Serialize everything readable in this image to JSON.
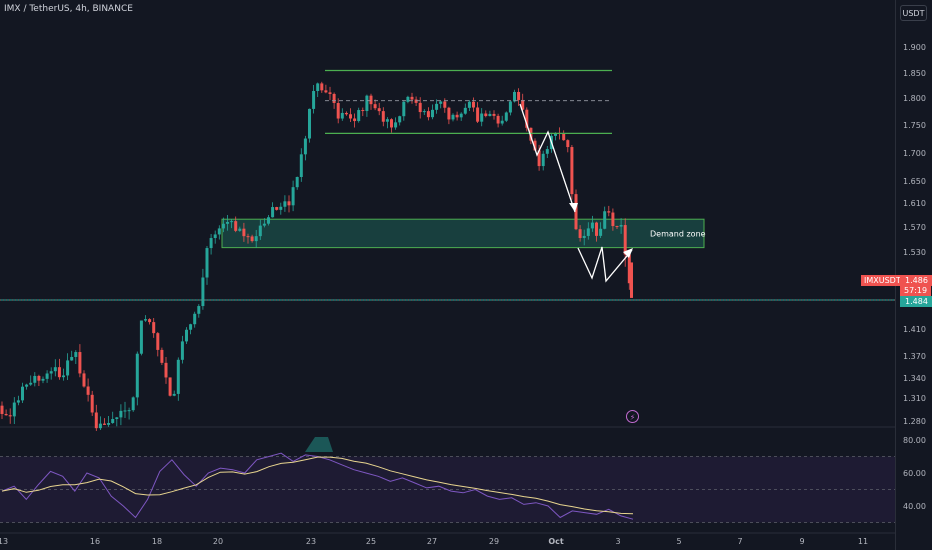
{
  "header": {
    "symbol_text": "IMX / TetherUS, 4h, BINANCE",
    "currency_button": "USDT"
  },
  "colors": {
    "background": "#131722",
    "up_candle": "#26a69a",
    "down_candle": "#ef5350",
    "range_line": "#4caf50",
    "demand_zone_fill": "#1b4d48",
    "rsi_line": "#7e57c2",
    "rsi_ma_line": "#e8d58f",
    "rsi_band_fill": "#1e1b33",
    "axis_text": "#b2b5be"
  },
  "price_axis": {
    "labels": [
      "1.900",
      "1.850",
      "1.800",
      "1.750",
      "1.700",
      "1.650",
      "1.610",
      "1.570",
      "1.530",
      "1.410",
      "1.370",
      "1.340",
      "1.310",
      "1.280"
    ]
  },
  "rsi_axis": {
    "labels": [
      "80.00",
      "60.00",
      "40.00"
    ],
    "levels": [
      70,
      50,
      30
    ]
  },
  "time_axis": {
    "labels": [
      "13",
      "16",
      "18",
      "20",
      "23",
      "25",
      "27",
      "29",
      "Oct",
      "3",
      "5",
      "7",
      "9",
      "11"
    ]
  },
  "price_tags": {
    "symbol_tag": "IMXUSDT",
    "last_price": "1.486",
    "countdown": "57:19",
    "bid_price": "1.484"
  },
  "annotations": {
    "demand_zone_label": "Demand zone"
  },
  "chart_data": {
    "type": "candlestick",
    "symbol": "IMX / TetherUS",
    "timeframe": "4h",
    "exchange": "BINANCE",
    "price_range": [
      1.26,
      1.93
    ],
    "dates": [
      "13",
      "16",
      "18",
      "20",
      "23",
      "25",
      "27",
      "29",
      "Oct",
      "3"
    ],
    "candles_approx": [
      {
        "date": "13",
        "open": 1.305,
        "high": 1.33,
        "low": 1.28,
        "close": 1.32
      },
      {
        "date": "15",
        "open": 1.33,
        "high": 1.36,
        "low": 1.3,
        "close": 1.345
      },
      {
        "date": "16",
        "open": 1.34,
        "high": 1.345,
        "low": 1.27,
        "close": 1.285
      },
      {
        "date": "17",
        "open": 1.29,
        "high": 1.46,
        "low": 1.27,
        "close": 1.44
      },
      {
        "date": "18",
        "open": 1.42,
        "high": 1.44,
        "low": 1.3,
        "close": 1.32
      },
      {
        "date": "19",
        "open": 1.33,
        "high": 1.47,
        "low": 1.32,
        "close": 1.46
      },
      {
        "date": "20",
        "open": 1.47,
        "high": 1.58,
        "low": 1.46,
        "close": 1.57
      },
      {
        "date": "21",
        "open": 1.56,
        "high": 1.6,
        "low": 1.52,
        "close": 1.58
      },
      {
        "date": "22",
        "open": 1.59,
        "high": 1.72,
        "low": 1.57,
        "close": 1.7
      },
      {
        "date": "23",
        "open": 1.72,
        "high": 1.86,
        "low": 1.7,
        "close": 1.82
      },
      {
        "date": "24",
        "open": 1.8,
        "high": 1.82,
        "low": 1.74,
        "close": 1.76
      },
      {
        "date": "25",
        "open": 1.76,
        "high": 1.81,
        "low": 1.73,
        "close": 1.79
      },
      {
        "date": "26",
        "open": 1.79,
        "high": 1.86,
        "low": 1.74,
        "close": 1.77
      },
      {
        "date": "27",
        "open": 1.77,
        "high": 1.84,
        "low": 1.75,
        "close": 1.81
      },
      {
        "date": "28",
        "open": 1.8,
        "high": 1.82,
        "low": 1.75,
        "close": 1.76
      },
      {
        "date": "29",
        "open": 1.77,
        "high": 1.86,
        "low": 1.74,
        "close": 1.8
      },
      {
        "date": "30",
        "open": 1.8,
        "high": 1.81,
        "low": 1.7,
        "close": 1.72
      },
      {
        "date": "Oct",
        "open": 1.72,
        "high": 1.76,
        "low": 1.53,
        "close": 1.55
      },
      {
        "date": "2",
        "open": 1.55,
        "high": 1.64,
        "low": 1.53,
        "close": 1.58
      },
      {
        "date": "3",
        "open": 1.56,
        "high": 1.6,
        "low": 1.49,
        "close": 1.486
      }
    ],
    "horizontal_levels": [
      {
        "name": "range-top",
        "price": 1.853
      },
      {
        "name": "range-mid",
        "price": 1.795
      },
      {
        "name": "range-bottom",
        "price": 1.735
      },
      {
        "name": "demand-zone-top",
        "price": 1.583
      },
      {
        "name": "demand-zone-bottom",
        "price": 1.537
      },
      {
        "name": "support",
        "price": 1.484
      }
    ],
    "last_price": 1.486,
    "rsi": {
      "range": [
        30,
        86
      ],
      "levels": [
        70,
        50,
        30
      ],
      "values_approx": [
        49,
        52,
        44,
        53,
        61,
        58,
        49,
        60,
        57,
        46,
        40,
        33,
        44,
        61,
        68,
        59,
        52,
        60,
        63,
        62,
        60,
        68,
        70,
        72,
        67,
        71,
        70,
        68,
        65,
        62,
        60,
        58,
        55,
        57,
        54,
        51,
        52,
        49,
        48,
        50,
        46,
        44,
        45,
        41,
        42,
        40,
        33,
        37,
        36,
        35,
        38,
        34,
        32
      ]
    }
  }
}
